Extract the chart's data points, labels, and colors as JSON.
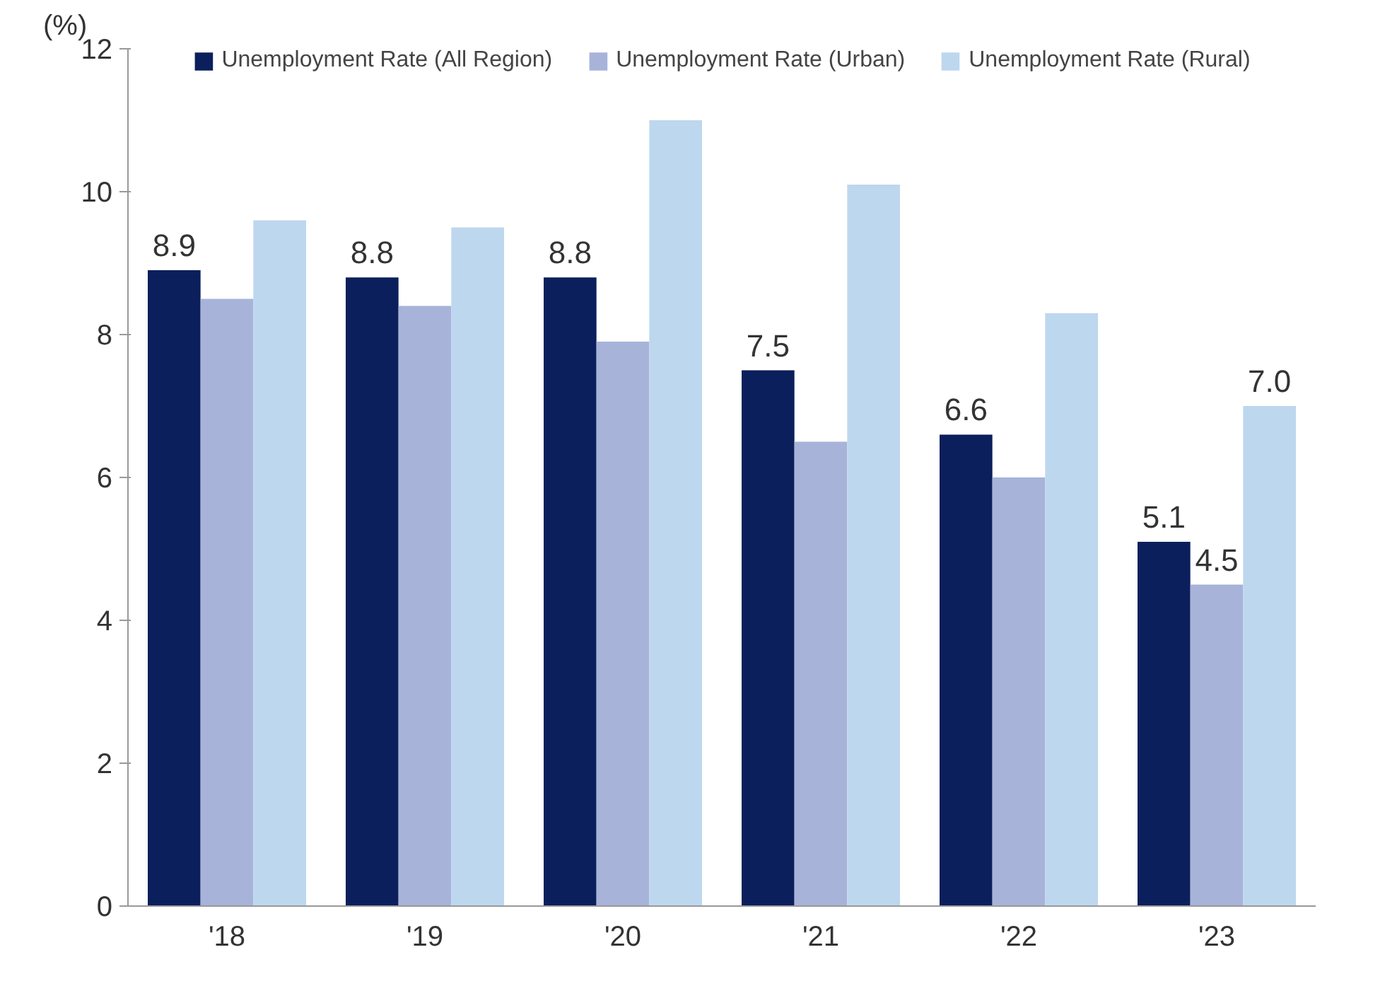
{
  "chart_data": {
    "type": "bar",
    "ylabel": "(%)",
    "categories": [
      "'18",
      "'19",
      "'20",
      "'21",
      "'22",
      "'23"
    ],
    "series": [
      {
        "name": "Unemployment Rate (All Region)",
        "color": "#0b1f5c",
        "values": [
          8.9,
          8.8,
          8.8,
          7.5,
          6.6,
          5.1
        ],
        "value_labels": [
          "8.9",
          "8.8",
          "8.8",
          "7.5",
          "6.6",
          "5.1"
        ]
      },
      {
        "name": "Unemployment Rate (Urban)",
        "color": "#a7b3d9",
        "values": [
          8.5,
          8.4,
          7.9,
          6.5,
          6.0,
          4.5
        ],
        "value_labels": [
          null,
          null,
          null,
          null,
          null,
          "4.5"
        ]
      },
      {
        "name": "Unemployment Rate (Rural)",
        "color": "#bdd7ee",
        "values": [
          9.6,
          9.5,
          11.0,
          10.1,
          8.3,
          7.0
        ],
        "value_labels": [
          null,
          null,
          null,
          null,
          null,
          "7.0"
        ]
      }
    ],
    "ylim": [
      0,
      12
    ],
    "yticks": [
      0,
      2,
      4,
      6,
      8,
      10,
      12
    ],
    "grid": false,
    "legend": "top"
  }
}
